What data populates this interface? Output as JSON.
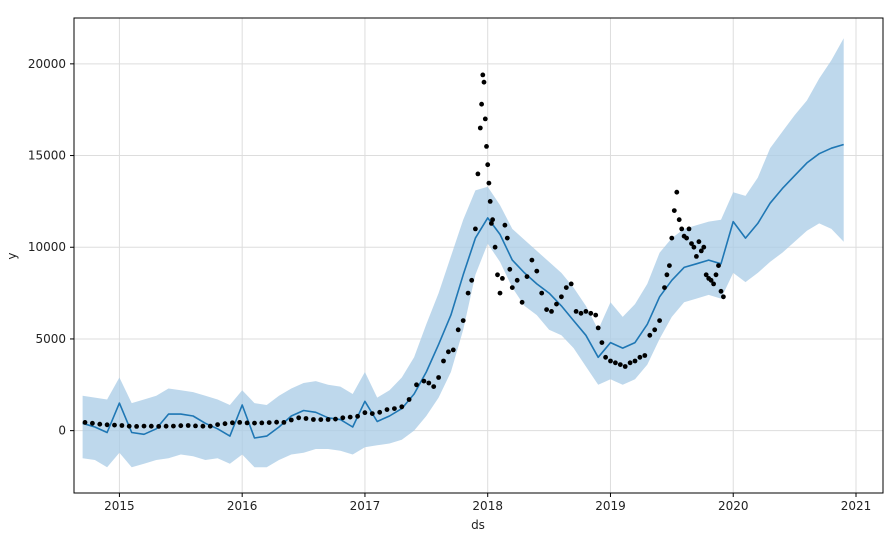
{
  "colors": {
    "forecast_line": "#1f77b4",
    "interval_fill": "#a8cbe6",
    "observations": "#000000",
    "grid": "#dddddd",
    "axes": "#000000"
  },
  "chart_data": {
    "type": "line",
    "xlabel": "ds",
    "ylabel": "y",
    "xlim": [
      2014.63,
      2021.22
    ],
    "ylim": [
      -3400,
      22500
    ],
    "x_ticks": [
      2015,
      2016,
      2017,
      2018,
      2019,
      2020,
      2021
    ],
    "x_tick_labels": [
      "2015",
      "2016",
      "2017",
      "2018",
      "2019",
      "2020",
      "2021"
    ],
    "y_ticks": [
      0,
      5000,
      10000,
      15000,
      20000
    ],
    "y_tick_labels": [
      "0",
      "5000",
      "10000",
      "15000",
      "20000"
    ],
    "grid": true,
    "series": [
      {
        "kind": "interval",
        "x": [
          2014.7,
          2014.8,
          2014.9,
          2015.0,
          2015.1,
          2015.2,
          2015.3,
          2015.4,
          2015.5,
          2015.6,
          2015.7,
          2015.8,
          2015.9,
          2016.0,
          2016.1,
          2016.2,
          2016.3,
          2016.4,
          2016.5,
          2016.6,
          2016.7,
          2016.8,
          2016.9,
          2017.0,
          2017.1,
          2017.2,
          2017.3,
          2017.4,
          2017.5,
          2017.6,
          2017.7,
          2017.8,
          2017.9,
          2018.0,
          2018.1,
          2018.2,
          2018.3,
          2018.4,
          2018.5,
          2018.6,
          2018.7,
          2018.8,
          2018.9,
          2019.0,
          2019.1,
          2019.2,
          2019.3,
          2019.4,
          2019.5,
          2019.6,
          2019.7,
          2019.8,
          2019.9,
          2020.0,
          2020.1,
          2020.2,
          2020.3,
          2020.4,
          2020.5,
          2020.6,
          2020.7,
          2020.8,
          2020.9
        ],
        "lower": [
          -1500,
          -1600,
          -2000,
          -1200,
          -2000,
          -1800,
          -1600,
          -1500,
          -1300,
          -1400,
          -1600,
          -1500,
          -1800,
          -1300,
          -2000,
          -2000,
          -1600,
          -1300,
          -1200,
          -1000,
          -1000,
          -1100,
          -1300,
          -900,
          -800,
          -700,
          -500,
          0,
          800,
          1800,
          3200,
          5500,
          8500,
          10200,
          9200,
          7800,
          6800,
          6300,
          5500,
          5200,
          4500,
          3500,
          2500,
          2800,
          2500,
          2800,
          3600,
          5000,
          6200,
          7000,
          7200,
          7400,
          7200,
          8600,
          8100,
          8600,
          9200,
          9700,
          10300,
          10900,
          11300,
          11000,
          10300
        ],
        "upper": [
          1900,
          1800,
          1700,
          2900,
          1500,
          1700,
          1900,
          2300,
          2200,
          2100,
          1900,
          1700,
          1400,
          2200,
          1500,
          1400,
          1900,
          2300,
          2600,
          2700,
          2500,
          2400,
          2000,
          3200,
          1800,
          2200,
          2900,
          4000,
          5800,
          7500,
          9500,
          11500,
          13100,
          13300,
          12300,
          11000,
          10400,
          9800,
          9200,
          8600,
          7800,
          6800,
          5500,
          7000,
          6200,
          6900,
          8000,
          9700,
          10500,
          11000,
          11200,
          11400,
          11500,
          13000,
          12800,
          13800,
          15400,
          16300,
          17200,
          18000,
          19200,
          20200,
          21400
        ]
      },
      {
        "kind": "line",
        "x": [
          2014.7,
          2014.8,
          2014.9,
          2015.0,
          2015.1,
          2015.2,
          2015.3,
          2015.4,
          2015.5,
          2015.6,
          2015.7,
          2015.8,
          2015.9,
          2016.0,
          2016.1,
          2016.2,
          2016.3,
          2016.4,
          2016.5,
          2016.6,
          2016.7,
          2016.8,
          2016.9,
          2017.0,
          2017.1,
          2017.2,
          2017.3,
          2017.4,
          2017.5,
          2017.6,
          2017.7,
          2017.8,
          2017.9,
          2018.0,
          2018.1,
          2018.2,
          2018.3,
          2018.4,
          2018.5,
          2018.6,
          2018.7,
          2018.8,
          2018.9,
          2019.0,
          2019.1,
          2019.2,
          2019.3,
          2019.4,
          2019.5,
          2019.6,
          2019.7,
          2019.8,
          2019.9,
          2020.0,
          2020.1,
          2020.2,
          2020.3,
          2020.4,
          2020.5,
          2020.6,
          2020.7,
          2020.8,
          2020.9
        ],
        "y": [
          400,
          200,
          -100,
          1500,
          -100,
          -200,
          100,
          900,
          900,
          800,
          400,
          100,
          -300,
          1400,
          -400,
          -300,
          200,
          800,
          1100,
          1000,
          700,
          600,
          200,
          1600,
          500,
          800,
          1200,
          2000,
          3200,
          4700,
          6300,
          8500,
          10500,
          11600,
          10700,
          9300,
          8600,
          8000,
          7500,
          6800,
          6000,
          5200,
          4000,
          4800,
          4500,
          4800,
          5800,
          7300,
          8200,
          8900,
          9100,
          9300,
          9100,
          11400,
          10500,
          11300,
          12400,
          13200,
          13900,
          14600,
          15100,
          15400,
          15600
        ]
      },
      {
        "kind": "scatter",
        "x": [
          2014.72,
          2014.78,
          2014.84,
          2014.9,
          2014.96,
          2015.02,
          2015.08,
          2015.14,
          2015.2,
          2015.26,
          2015.32,
          2015.38,
          2015.44,
          2015.5,
          2015.56,
          2015.62,
          2015.68,
          2015.74,
          2015.8,
          2015.86,
          2015.92,
          2015.98,
          2016.04,
          2016.1,
          2016.16,
          2016.22,
          2016.28,
          2016.34,
          2016.4,
          2016.46,
          2016.52,
          2016.58,
          2016.64,
          2016.7,
          2016.76,
          2016.82,
          2016.88,
          2016.94,
          2017.0,
          2017.06,
          2017.12,
          2017.18,
          2017.24,
          2017.3,
          2017.36,
          2017.42,
          2017.48,
          2017.52,
          2017.56,
          2017.6,
          2017.64,
          2017.68,
          2017.72,
          2017.76,
          2017.8,
          2017.84,
          2017.87,
          2017.9,
          2017.92,
          2017.94,
          2017.95,
          2017.96,
          2017.97,
          2017.98,
          2017.99,
          2018.0,
          2018.01,
          2018.02,
          2018.03,
          2018.04,
          2018.06,
          2018.08,
          2018.1,
          2018.12,
          2018.14,
          2018.16,
          2018.18,
          2018.2,
          2018.24,
          2018.28,
          2018.32,
          2018.36,
          2018.4,
          2018.44,
          2018.48,
          2018.52,
          2018.56,
          2018.6,
          2018.64,
          2018.68,
          2018.72,
          2018.76,
          2018.8,
          2018.84,
          2018.88,
          2018.9,
          2018.93,
          2018.96,
          2019.0,
          2019.04,
          2019.08,
          2019.12,
          2019.16,
          2019.2,
          2019.24,
          2019.28,
          2019.32,
          2019.36,
          2019.4,
          2019.44,
          2019.46,
          2019.48,
          2019.5,
          2019.52,
          2019.54,
          2019.56,
          2019.58,
          2019.6,
          2019.62,
          2019.64,
          2019.66,
          2019.68,
          2019.7,
          2019.72,
          2019.74,
          2019.76,
          2019.78,
          2019.8,
          2019.82,
          2019.84,
          2019.86,
          2019.88,
          2019.9,
          2019.92
        ],
        "y": [
          450,
          400,
          350,
          320,
          300,
          280,
          240,
          230,
          250,
          240,
          230,
          240,
          250,
          270,
          280,
          260,
          240,
          240,
          330,
          380,
          430,
          450,
          420,
          410,
          420,
          440,
          460,
          450,
          580,
          700,
          660,
          610,
          600,
          610,
          630,
          700,
          740,
          780,
          980,
          930,
          1000,
          1150,
          1200,
          1300,
          1700,
          2500,
          2700,
          2600,
          2400,
          2900,
          3800,
          4300,
          4400,
          5500,
          6000,
          7500,
          8200,
          11000,
          14000,
          16500,
          17800,
          19400,
          19000,
          17000,
          15500,
          14500,
          13500,
          12500,
          11300,
          11500,
          10000,
          8500,
          7500,
          8300,
          11200,
          10500,
          8800,
          7800,
          8200,
          7000,
          8400,
          9300,
          8700,
          7500,
          6600,
          6500,
          6900,
          7300,
          7800,
          8000,
          6500,
          6400,
          6500,
          6400,
          6300,
          5600,
          4800,
          4000,
          3800,
          3700,
          3600,
          3500,
          3700,
          3800,
          4000,
          4100,
          5200,
          5500,
          6000,
          7800,
          8500,
          9000,
          10500,
          12000,
          13000,
          11500,
          11000,
          10600,
          10500,
          11000,
          10200,
          10000,
          9500,
          10300,
          9800,
          10000,
          8500,
          8300,
          8200,
          8000,
          8500,
          9000,
          7600,
          7300
        ]
      }
    ]
  }
}
